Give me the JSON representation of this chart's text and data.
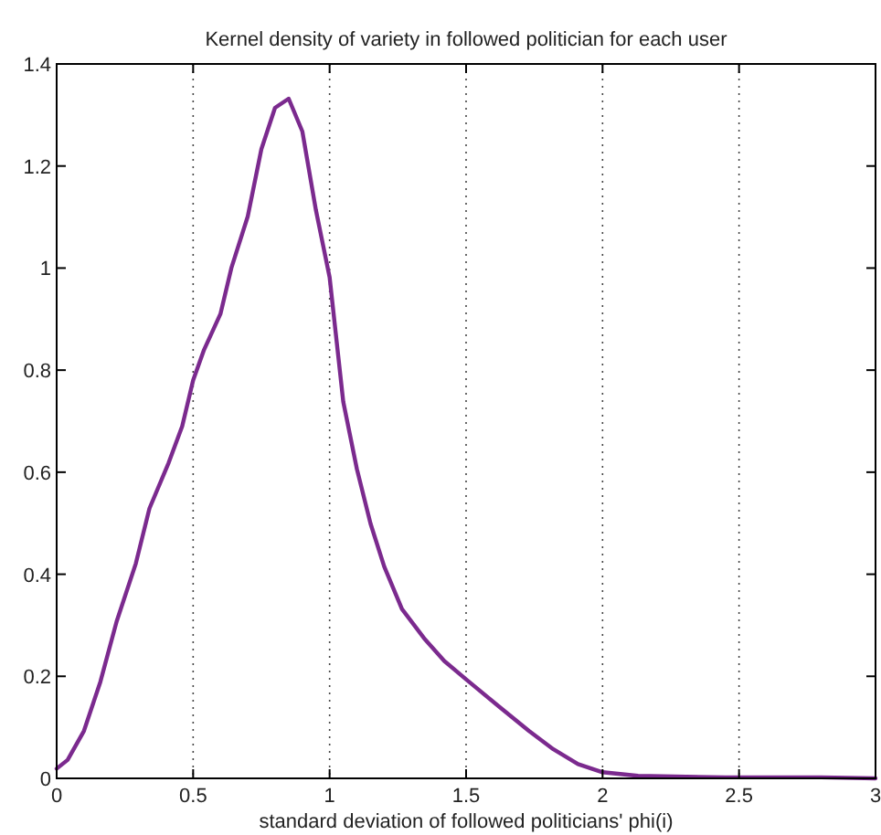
{
  "chart_data": {
    "type": "line",
    "title": "Kernel density of variety in followed politician for each user",
    "xlabel": "standard deviation of followed politicians' phi(i)",
    "series": [
      {
        "color": "#7b2a8e",
        "x": [
          0,
          0.04,
          0.1,
          0.16,
          0.22,
          0.29,
          0.34,
          0.41,
          0.46,
          0.5,
          0.54,
          0.6,
          0.64,
          0.7,
          0.75,
          0.8,
          0.85,
          0.9,
          0.95,
          1.0,
          1.05,
          1.1,
          1.15,
          1.2,
          1.265,
          1.35,
          1.42,
          1.5,
          1.62,
          1.73,
          1.82,
          1.91,
          2.0,
          2.13,
          2.45,
          2.8,
          3.0
        ],
        "values": [
          0.019,
          0.036,
          0.093,
          0.189,
          0.308,
          0.421,
          0.529,
          0.618,
          0.69,
          0.78,
          0.84,
          0.91,
          1.0,
          1.101,
          1.233,
          1.314,
          1.332,
          1.268,
          1.113,
          0.982,
          0.738,
          0.606,
          0.499,
          0.415,
          0.332,
          0.272,
          0.23,
          0.194,
          0.141,
          0.093,
          0.057,
          0.028,
          0.012,
          0.005,
          0.002,
          0.002,
          0
        ]
      }
    ],
    "xlim": [
      0,
      3
    ],
    "xticks": [
      0,
      0.5,
      1,
      1.5,
      2,
      2.5,
      3
    ],
    "ylim": [
      0,
      1.4
    ],
    "yticks": [
      0,
      0.2,
      0.4,
      0.6,
      0.8,
      1,
      1.2,
      1.4
    ],
    "grid": "x",
    "line_style": "solid"
  }
}
